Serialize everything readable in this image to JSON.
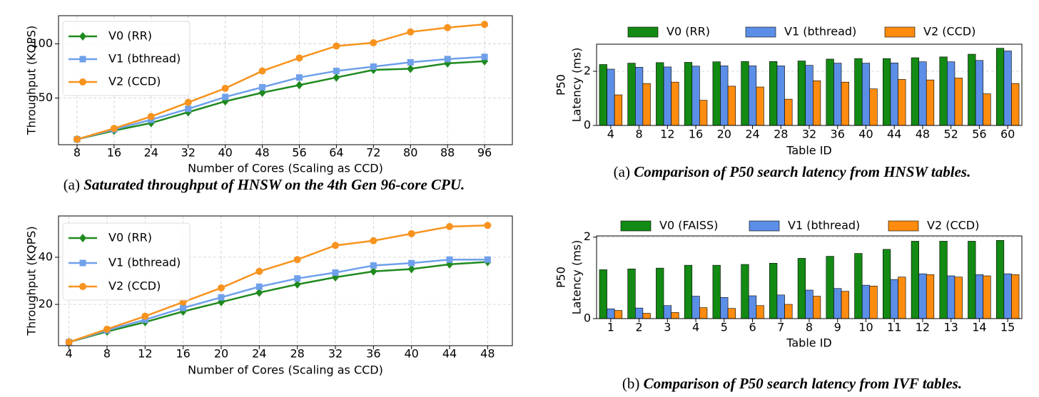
{
  "chart_data": [
    {
      "type": "line",
      "caption_label": "(a)",
      "caption": "Saturated throughput of HNSW on the 4th Gen 96-core CPU.",
      "xlabel": "Number of Cores (Scaling as CCD)",
      "ylabel": "Throughput (KQPS)",
      "x": [
        8,
        16,
        24,
        32,
        40,
        48,
        56,
        64,
        72,
        80,
        88,
        96
      ],
      "xlim": [
        4,
        102
      ],
      "xticks": [
        8,
        16,
        24,
        32,
        40,
        48,
        56,
        64,
        72,
        80,
        88,
        96
      ],
      "ylim": [
        7,
        126
      ],
      "yticks": [
        50,
        100
      ],
      "grid": true,
      "legend": "upper left",
      "series": [
        {
          "name": "V0 (RR)",
          "color": "#1f8a1f",
          "marker": "diamond",
          "values": [
            12,
            20,
            27,
            37,
            47,
            55,
            62,
            69,
            76,
            77,
            82,
            84
          ]
        },
        {
          "name": "V1 (bthread)",
          "color": "#6fa0ea",
          "marker": "square",
          "values": [
            12,
            21,
            30,
            40,
            51,
            60,
            69,
            75,
            79,
            83,
            86,
            88
          ]
        },
        {
          "name": "V2 (CCD)",
          "color": "#f7931e",
          "marker": "circle",
          "values": [
            12,
            22,
            33,
            46,
            59,
            75,
            87,
            98,
            101,
            111,
            115,
            118
          ]
        }
      ]
    },
    {
      "type": "line",
      "xlabel": "Number of Cores (Scaling as CCD)",
      "ylabel": "Throughput (KQPS)",
      "x": [
        4,
        8,
        12,
        16,
        20,
        24,
        28,
        32,
        36,
        40,
        44,
        48
      ],
      "xlim": [
        2.9,
        50.6
      ],
      "xticks": [
        4,
        8,
        12,
        16,
        20,
        24,
        28,
        32,
        36,
        40,
        44,
        48
      ],
      "ylim": [
        2.5,
        57.5
      ],
      "yticks": [
        20,
        40
      ],
      "grid": true,
      "legend": "upper left",
      "series": [
        {
          "name": "V0 (RR)",
          "color": "#1f8a1f",
          "marker": "diamond",
          "values": [
            4,
            8.5,
            12.5,
            17,
            21,
            25,
            28.5,
            31.5,
            34,
            35,
            37,
            38
          ]
        },
        {
          "name": "V1 (bthread)",
          "color": "#6fa0ea",
          "marker": "square",
          "values": [
            4,
            9,
            13.5,
            18.5,
            23,
            27.5,
            31,
            33.5,
            36.5,
            37.5,
            39,
            39
          ]
        },
        {
          "name": "V2 (CCD)",
          "color": "#f7931e",
          "marker": "circle",
          "values": [
            4,
            9.5,
            15,
            21,
            27,
            34,
            39,
            45,
            47,
            50,
            53,
            53.5
          ]
        }
      ]
    },
    {
      "type": "bar",
      "caption_label": "(a)",
      "caption": "Comparison of P50 search latency from HNSW tables.",
      "xlabel": "Table ID",
      "ylabel": [
        "P50",
        "Latency (ms)"
      ],
      "categories": [
        "4",
        "8",
        "12",
        "16",
        "20",
        "24",
        "28",
        "32",
        "36",
        "40",
        "44",
        "48",
        "52",
        "56",
        "60"
      ],
      "ylim": [
        0,
        3
      ],
      "yticks": [
        0,
        2
      ],
      "grid": true,
      "legend": "upper center",
      "series": [
        {
          "name": "V0 (RR)",
          "color": "#138a13",
          "values": [
            2.25,
            2.3,
            2.32,
            2.33,
            2.35,
            2.36,
            2.36,
            2.38,
            2.45,
            2.47,
            2.47,
            2.5,
            2.53,
            2.63,
            2.85
          ]
        },
        {
          "name": "V1 (bthread)",
          "color": "#5b8ee6",
          "values": [
            2.08,
            2.15,
            2.16,
            2.19,
            2.2,
            2.2,
            2.2,
            2.22,
            2.3,
            2.3,
            2.31,
            2.35,
            2.35,
            2.4,
            2.75
          ]
        },
        {
          "name": "V2 (CCD)",
          "color": "#ff8c0f",
          "values": [
            1.13,
            1.55,
            1.6,
            0.93,
            1.45,
            1.42,
            0.97,
            1.65,
            1.6,
            1.35,
            1.7,
            1.68,
            1.75,
            1.17,
            1.55
          ]
        }
      ]
    },
    {
      "type": "bar",
      "caption_label": "(b)",
      "caption": "Comparison of P50 search latency from IVF tables.",
      "xlabel": "Table ID",
      "ylabel": [
        "P50",
        "Latency (ms)"
      ],
      "categories": [
        "1",
        "2",
        "3",
        "4",
        "5",
        "6",
        "7",
        "8",
        "9",
        "10",
        "11",
        "12",
        "13",
        "14",
        "15"
      ],
      "ylim": [
        0,
        2.03
      ],
      "yticks": [
        0,
        2
      ],
      "grid": true,
      "legend": "upper center",
      "series": [
        {
          "name": "V0 (FAISS)",
          "color": "#138a13",
          "values": [
            1.2,
            1.22,
            1.24,
            1.31,
            1.31,
            1.33,
            1.36,
            1.48,
            1.53,
            1.6,
            1.7,
            1.9,
            1.9,
            1.9,
            1.92
          ]
        },
        {
          "name": "V1 (bthread)",
          "color": "#5b8ee6",
          "values": [
            0.24,
            0.26,
            0.32,
            0.55,
            0.52,
            0.56,
            0.58,
            0.7,
            0.74,
            0.82,
            0.96,
            1.1,
            1.05,
            1.08,
            1.1
          ]
        },
        {
          "name": "V2 (CCD)",
          "color": "#ff8c0f",
          "values": [
            0.2,
            0.13,
            0.15,
            0.27,
            0.25,
            0.32,
            0.35,
            0.55,
            0.67,
            0.8,
            1.02,
            1.08,
            1.02,
            1.05,
            1.08
          ]
        }
      ]
    }
  ]
}
